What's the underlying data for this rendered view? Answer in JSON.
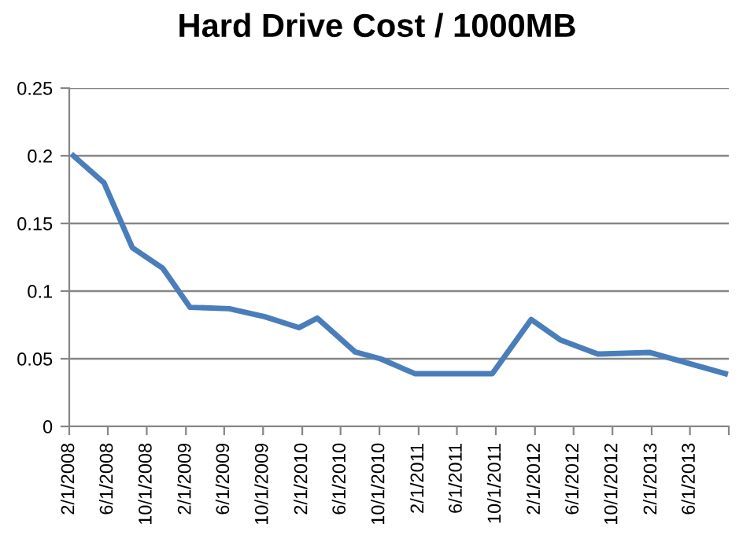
{
  "chart_data": {
    "type": "line",
    "title": "Hard Drive Cost / 1000MB",
    "x": [
      "2008-02-14",
      "2008-05-20",
      "2008-08-17",
      "2008-11-20",
      "2009-02-14",
      "2009-06-17",
      "2009-10-07",
      "2010-01-22",
      "2010-03-20",
      "2010-07-17",
      "2010-10-04",
      "2011-01-20",
      "2011-09-20",
      "2012-01-20",
      "2012-04-20",
      "2012-08-16",
      "2013-01-25",
      "2013-09-20"
    ],
    "series": [
      {
        "color": "#4a7ebb",
        "values": [
          0.2,
          0.18,
          0.132,
          0.117,
          0.088,
          0.087,
          0.081,
          0.073,
          0.08,
          0.055,
          0.05,
          0.039,
          0.039,
          0.079,
          0.064,
          0.0535,
          0.0547,
          0.039
        ]
      }
    ],
    "xlim": [
      "2008-02-01",
      "2013-10-01"
    ],
    "xticks": [
      {
        "value": "2008-02-01",
        "label": "2/1/2008"
      },
      {
        "value": "2008-06-01",
        "label": "6/1/2008"
      },
      {
        "value": "2008-10-01",
        "label": "10/1/2008"
      },
      {
        "value": "2009-02-01",
        "label": "2/1/2009"
      },
      {
        "value": "2009-06-01",
        "label": "6/1/2009"
      },
      {
        "value": "2009-10-01",
        "label": "10/1/2009"
      },
      {
        "value": "2010-02-01",
        "label": "2/1/2010"
      },
      {
        "value": "2010-06-01",
        "label": "6/1/2010"
      },
      {
        "value": "2010-10-01",
        "label": "10/1/2010"
      },
      {
        "value": "2011-02-01",
        "label": "2/1/2011"
      },
      {
        "value": "2011-06-01",
        "label": "6/1/2011"
      },
      {
        "value": "2011-10-01",
        "label": "10/1/2011"
      },
      {
        "value": "2012-02-01",
        "label": "2/1/2012"
      },
      {
        "value": "2012-06-01",
        "label": "6/1/2012"
      },
      {
        "value": "2012-10-01",
        "label": "10/1/2012"
      },
      {
        "value": "2013-02-01",
        "label": "2/1/2013"
      },
      {
        "value": "2013-06-01",
        "label": "6/1/2013"
      },
      {
        "value": "2013-10-01",
        "label": null
      }
    ],
    "ylim": [
      0,
      0.25
    ],
    "yticks": [
      0,
      0.05,
      0.1,
      0.15,
      0.2,
      0.25
    ],
    "grid": "y",
    "legend": false,
    "marker": "none",
    "line_style": "solid"
  }
}
